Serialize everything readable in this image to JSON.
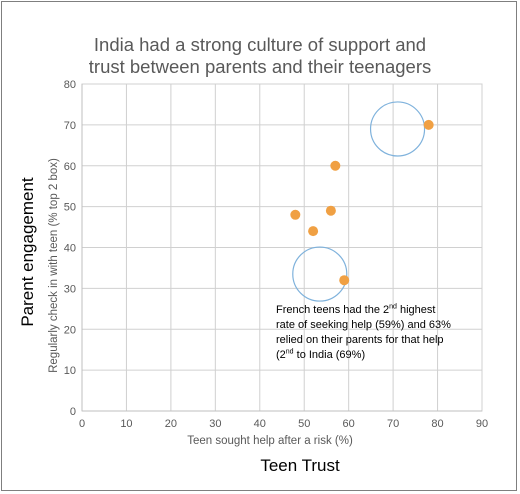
{
  "chart_data": {
    "type": "scatter",
    "title_lines": [
      "India had a strong culture of support and",
      "trust between parents and their teenagers"
    ],
    "outer_ylabel": "Parent engagement",
    "outer_xlabel": "Teen Trust",
    "xlabel": "Teen sought help after a risk (%)",
    "ylabel": "Regularly check in with teen (% top 2 box)",
    "xlim": [
      0,
      90
    ],
    "ylim": [
      0,
      80
    ],
    "xticks": [
      0,
      10,
      20,
      30,
      40,
      50,
      60,
      70,
      80,
      90
    ],
    "yticks": [
      0,
      10,
      20,
      30,
      40,
      50,
      60,
      70,
      80
    ],
    "grid": true,
    "point_color": "#f0a043",
    "highlight_color": "#7fb2dc",
    "points": [
      {
        "x": 48,
        "y": 48
      },
      {
        "x": 52,
        "y": 44
      },
      {
        "x": 56,
        "y": 49
      },
      {
        "x": 57,
        "y": 60
      },
      {
        "x": 59,
        "y": 32
      },
      {
        "x": 78,
        "y": 70
      }
    ],
    "highlights": [
      {
        "cx": 71,
        "cy": 69
      },
      {
        "cx": 53.5,
        "cy": 33.5
      }
    ],
    "annotation": {
      "line1_a": "French teens had the 2",
      "line1_sup": "nd",
      "line1_b": " highest",
      "line2": "rate of seeking help (59%) and 63%",
      "line3": "relied on their parents for that help",
      "line4_a": "(2",
      "line4_sup": "nd",
      "line4_b": " to India (69%)"
    }
  }
}
